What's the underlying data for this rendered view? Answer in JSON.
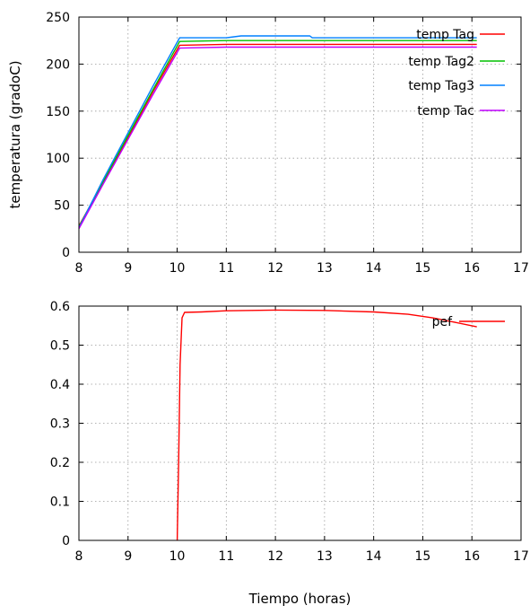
{
  "chart_data": [
    {
      "type": "line",
      "ylabel": "temperatura (gradoC)",
      "xlim": [
        8,
        17
      ],
      "ylim": [
        0,
        250
      ],
      "x_ticks": [
        "8",
        "9",
        "10",
        "11",
        "12",
        "13",
        "14",
        "15",
        "16",
        "17"
      ],
      "y_ticks": [
        "0",
        "50",
        "100",
        "150",
        "200",
        "250"
      ],
      "grid": true,
      "legend_position": "top-right",
      "series": [
        {
          "name": "temp Tag",
          "color": "#ff0000",
          "points": [
            [
              8.0,
              28
            ],
            [
              8.5,
              75
            ],
            [
              9.0,
              122
            ],
            [
              9.5,
              170
            ],
            [
              10.05,
              220
            ],
            [
              11.0,
              221
            ],
            [
              13.0,
              221
            ],
            [
              16.1,
              221
            ]
          ]
        },
        {
          "name": "temp Tag2",
          "color": "#00c000",
          "points": [
            [
              8.0,
              27
            ],
            [
              8.5,
              76
            ],
            [
              9.0,
              124
            ],
            [
              9.5,
              172
            ],
            [
              10.05,
              224
            ],
            [
              11.0,
              225
            ],
            [
              13.0,
              225
            ],
            [
              16.1,
              225
            ]
          ]
        },
        {
          "name": "temp Tag3",
          "color": "#0080ff",
          "points": [
            [
              8.0,
              26
            ],
            [
              8.5,
              78
            ],
            [
              9.0,
              127
            ],
            [
              9.5,
              176
            ],
            [
              10.05,
              228
            ],
            [
              11.0,
              228
            ],
            [
              11.3,
              230
            ],
            [
              12.7,
              230
            ],
            [
              12.75,
              228
            ],
            [
              16.1,
              228
            ]
          ]
        },
        {
          "name": "temp Tac",
          "color": "#c000ff",
          "points": [
            [
              8.0,
              25
            ],
            [
              8.5,
              73
            ],
            [
              9.0,
              120
            ],
            [
              9.5,
              167
            ],
            [
              10.05,
              217
            ],
            [
              11.0,
              218
            ],
            [
              13.0,
              218
            ],
            [
              16.1,
              218
            ]
          ]
        }
      ]
    },
    {
      "type": "line",
      "xlabel": "Tiempo (horas)",
      "xlim": [
        8,
        17
      ],
      "ylim": [
        0,
        0.6
      ],
      "x_ticks": [
        "8",
        "9",
        "10",
        "11",
        "12",
        "13",
        "14",
        "15",
        "16",
        "17"
      ],
      "y_ticks": [
        "0",
        "0.1",
        "0.2",
        "0.3",
        "0.4",
        "0.5",
        "0.6"
      ],
      "grid": true,
      "legend_position": "top-right",
      "series": [
        {
          "name": "pef",
          "color": "#ff0000",
          "points": [
            [
              10.0,
              0.0
            ],
            [
              10.03,
              0.2
            ],
            [
              10.06,
              0.45
            ],
            [
              10.1,
              0.57
            ],
            [
              10.15,
              0.584
            ],
            [
              10.5,
              0.585
            ],
            [
              11.0,
              0.588
            ],
            [
              12.0,
              0.59
            ],
            [
              13.0,
              0.589
            ],
            [
              14.0,
              0.585
            ],
            [
              14.7,
              0.579
            ],
            [
              15.2,
              0.57
            ],
            [
              15.6,
              0.56
            ],
            [
              16.1,
              0.547
            ]
          ]
        }
      ]
    }
  ]
}
